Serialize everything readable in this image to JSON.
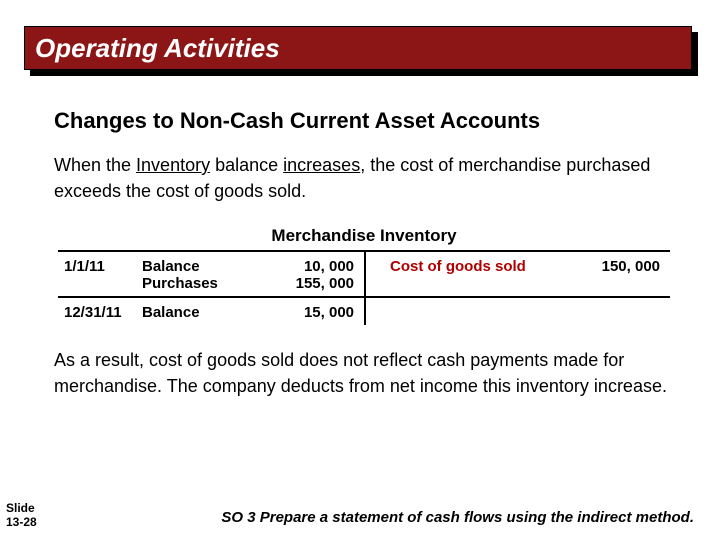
{
  "banner": {
    "title": "Operating Activities"
  },
  "subheading": "Changes to Non-Cash Current Asset Accounts",
  "para1": {
    "pre": "When the ",
    "u1": "Inventory",
    "mid1": " balance ",
    "u2": "increases",
    "post": ", the cost of merchandise purchased exceeds the cost of goods sold."
  },
  "tacct": {
    "title": "Merchandise Inventory",
    "r1": {
      "date": "1/1/11",
      "label1": "Balance",
      "amt1": "10, 000",
      "label2": "Purchases",
      "amt2": "155, 000",
      "right_label": "Cost of goods sold",
      "right_amt": "150, 000"
    },
    "r2": {
      "date": "12/31/11",
      "label": "Balance",
      "amt": "15, 000"
    }
  },
  "para2": "As a result, cost of goods sold does not reflect cash payments made for merchandise.  The company deducts from net income this inventory increase.",
  "footer": {
    "slide_word": "Slide",
    "slide_num": "13-28",
    "so": "SO 3  Prepare a statement of cash flows using the indirect method."
  },
  "colors": {
    "banner_bg": "#8c1515",
    "cogs": "#b00000"
  }
}
